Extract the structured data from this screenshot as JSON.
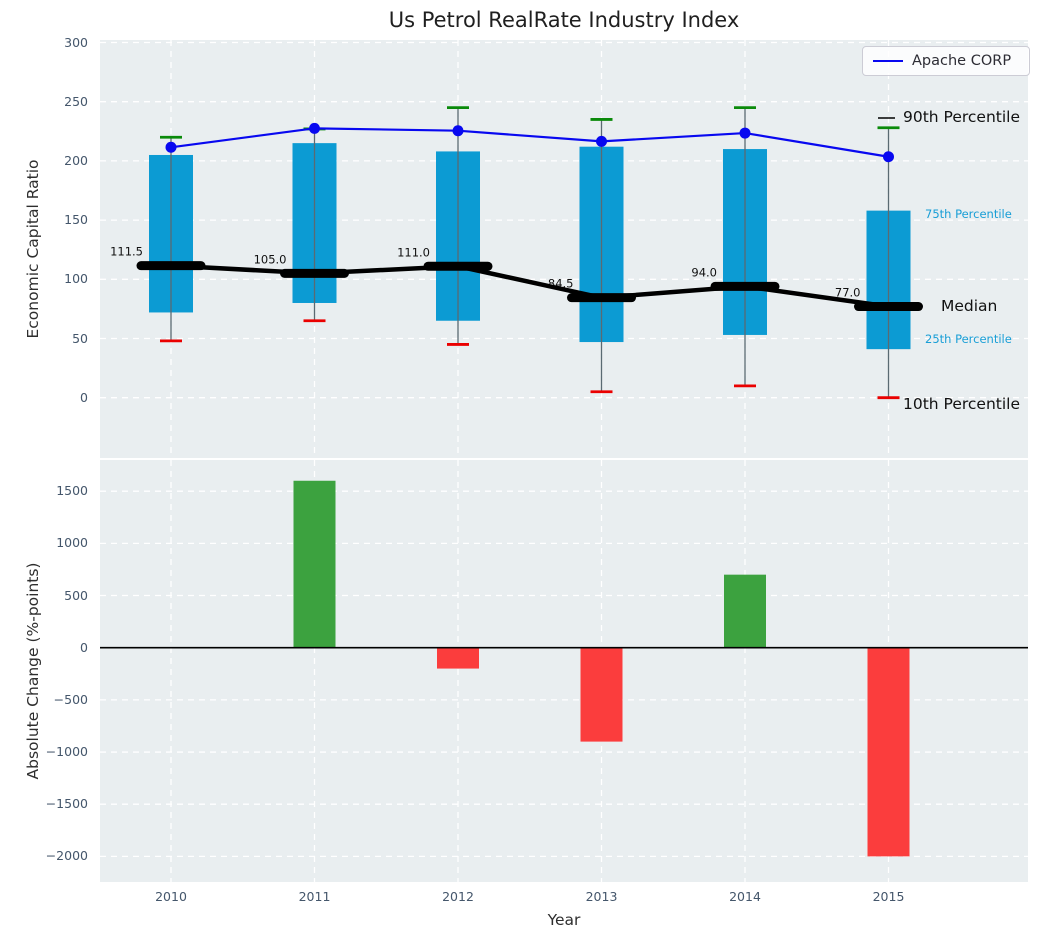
{
  "title": "Us Petrol RealRate Industry Index",
  "legend": {
    "label": "Apache CORP"
  },
  "panel1": {
    "ylabel": "Economic Capital Ratio",
    "ytick_labels": [
      "300",
      "250",
      "200",
      "150",
      "100",
      "50",
      "0"
    ],
    "annotations": {
      "p90": "90th Percentile",
      "p75": "75th Percentile",
      "median": "Median",
      "p25": "25th Percentile",
      "p10": "10th Percentile"
    }
  },
  "panel2": {
    "ylabel": "Absolute Change (%-points)",
    "xlabel": "Year",
    "ytick_labels": [
      "1500",
      "1000",
      "500",
      "0",
      "−500",
      "−1000",
      "−1500",
      "−2000"
    ]
  },
  "colors": {
    "panel_bg": "#e9eef0",
    "grid": "#ffffff",
    "tick_label": "#44566b",
    "box_fill": "#0c9bd3",
    "whisker": "#5a6a72",
    "p90_cap": "#0a8a0a",
    "p10_cap": "#ea0000",
    "median_line": "#000000",
    "apache_line": "#0808f0",
    "bar_positive": "#3ca23f",
    "bar_negative": "#fb3d3d",
    "percentile_label_small": "#189ed6"
  },
  "chart_data": [
    {
      "type": "boxplot",
      "title": "Us Petrol RealRate Industry Index",
      "ylabel": "Economic Capital Ratio",
      "categories": [
        "2010",
        "2011",
        "2012",
        "2013",
        "2014",
        "2015"
      ],
      "yticks": [
        0,
        50,
        100,
        150,
        200,
        250,
        300
      ],
      "ylim": [
        -51,
        302
      ],
      "grid": true,
      "legend_position": "upper right",
      "series": [
        {
          "name": "10th Percentile",
          "values": [
            48,
            65,
            45,
            5,
            10,
            0
          ]
        },
        {
          "name": "25th Percentile",
          "values": [
            72,
            80,
            65,
            47,
            53,
            41
          ]
        },
        {
          "name": "Median",
          "values": [
            111.5,
            105.0,
            111.0,
            84.5,
            94.0,
            77.0
          ]
        },
        {
          "name": "75th Percentile",
          "values": [
            205,
            215,
            208,
            212,
            210,
            158
          ]
        },
        {
          "name": "90th Percentile",
          "values": [
            220,
            227,
            245,
            235,
            245,
            228
          ]
        },
        {
          "name": "Apache CORP",
          "values": [
            211.5,
            227.5,
            225.5,
            216.5,
            223.5,
            203.5
          ]
        }
      ],
      "median_labels": [
        "111.5",
        "105.0",
        "111.0",
        "84.5",
        "94.0",
        "77.0"
      ]
    },
    {
      "type": "bar",
      "categories": [
        "2010",
        "2011",
        "2012",
        "2013",
        "2014",
        "2015"
      ],
      "values": [
        0,
        1600,
        -200,
        -900,
        700,
        -2000
      ],
      "xlabel": "Year",
      "ylabel": "Absolute Change (%-points)",
      "yticks": [
        1500,
        1000,
        500,
        0,
        -500,
        -1000,
        -1500,
        -2000
      ],
      "ylim": [
        -2260,
        1800
      ],
      "grid": true
    }
  ]
}
